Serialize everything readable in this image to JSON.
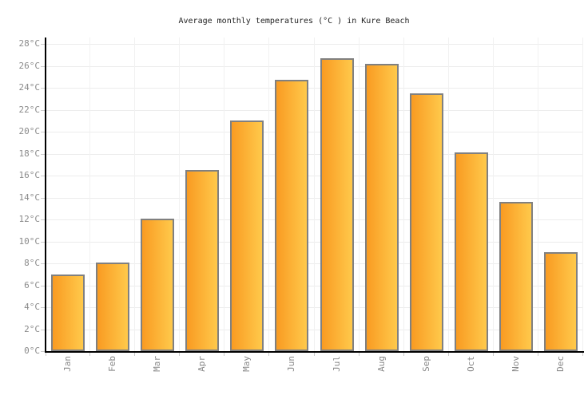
{
  "title": "Average monthly temperatures (°C ) in Kure Beach",
  "chart_data": {
    "type": "bar",
    "title": "Average monthly temperatures (°C ) in Kure Beach",
    "categories": [
      "Jan",
      "Feb",
      "Mar",
      "Apr",
      "May",
      "Jun",
      "Jul",
      "Aug",
      "Sep",
      "Oct",
      "Nov",
      "Dec"
    ],
    "values": [
      7.0,
      8.1,
      12.1,
      16.5,
      21.0,
      24.7,
      26.7,
      26.2,
      23.5,
      18.1,
      13.6,
      9.0
    ],
    "unit": "°C",
    "xlabel": "",
    "ylabel": "",
    "ylim": [
      0,
      28
    ],
    "ytick_step": 2,
    "grid": true,
    "legend": "none",
    "colors": {
      "bar_gradient_left": "#f99b22",
      "bar_gradient_right": "#ffc94b",
      "bar_border": "#808080",
      "axis": "#000000",
      "gridline": "#ececec",
      "tick_mark": "#cccccc",
      "tick_label": "#8a8a8a",
      "title_text": "#222222",
      "background": "#ffffff"
    }
  }
}
